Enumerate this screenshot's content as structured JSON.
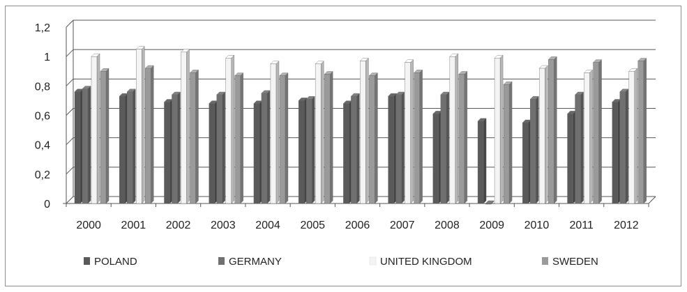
{
  "chart_data": {
    "type": "bar",
    "categories": [
      "2000",
      "2001",
      "2002",
      "2003",
      "2004",
      "2005",
      "2006",
      "2007",
      "2008",
      "2009",
      "2010",
      "2011",
      "2012"
    ],
    "series": [
      {
        "name": "POLAND",
        "color": "#5a5a5a",
        "values": [
          0.76,
          0.73,
          0.69,
          0.68,
          0.68,
          0.7,
          0.68,
          0.73,
          0.61,
          0.56,
          0.55,
          0.61,
          0.69
        ]
      },
      {
        "name": "GERMANY",
        "color": "#707070",
        "values": [
          0.78,
          0.76,
          0.74,
          0.74,
          0.75,
          0.71,
          0.73,
          0.74,
          0.74,
          0.0,
          0.71,
          0.74,
          0.76
        ]
      },
      {
        "name": "UNITED KINGDOM",
        "color": "#f4f4f4",
        "values": [
          1.0,
          1.05,
          1.03,
          0.99,
          0.95,
          0.95,
          0.97,
          0.96,
          1.0,
          0.99,
          0.92,
          0.89,
          0.9
        ]
      },
      {
        "name": "SWEDEN",
        "color": "#9a9a9a",
        "values": [
          0.9,
          0.92,
          0.89,
          0.87,
          0.87,
          0.88,
          0.87,
          0.89,
          0.88,
          0.81,
          0.98,
          0.96,
          0.97
        ]
      }
    ],
    "y_ticks": [
      "0",
      "0,2",
      "0,4",
      "0,6",
      "0,8",
      "1",
      "1,2"
    ],
    "ylim": [
      0,
      1.2
    ],
    "grid": true,
    "legend_position": "bottom"
  }
}
